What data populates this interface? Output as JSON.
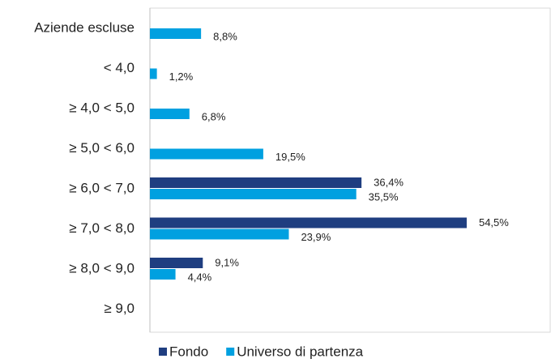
{
  "chart_data": {
    "type": "barh",
    "categories": [
      "Aziende escluse",
      "< 4,0",
      "≥ 4,0 < 5,0",
      "≥ 5,0 < 6,0",
      "≥ 6,0 < 7,0",
      "≥ 7,0 < 8,0",
      "≥ 8,0 < 9,0",
      "≥ 9,0"
    ],
    "series": [
      {
        "name": "Fondo",
        "color": "#1f3e80",
        "values": [
          null,
          null,
          null,
          null,
          36.4,
          54.5,
          9.1,
          null
        ],
        "value_labels": [
          null,
          null,
          null,
          null,
          "36,4%",
          "54,5%",
          "9,1%",
          null
        ]
      },
      {
        "name": "Universo di partenza",
        "color": "#00a0e0",
        "values": [
          8.8,
          1.2,
          6.8,
          19.5,
          35.5,
          23.9,
          4.4,
          null
        ],
        "value_labels": [
          "8,8%",
          "1,2%",
          "6,8%",
          "19,5%",
          "35,5%",
          "23,9%",
          "4,4%",
          null
        ]
      }
    ],
    "xlim": [
      0,
      69
    ],
    "legend": "bottom"
  }
}
